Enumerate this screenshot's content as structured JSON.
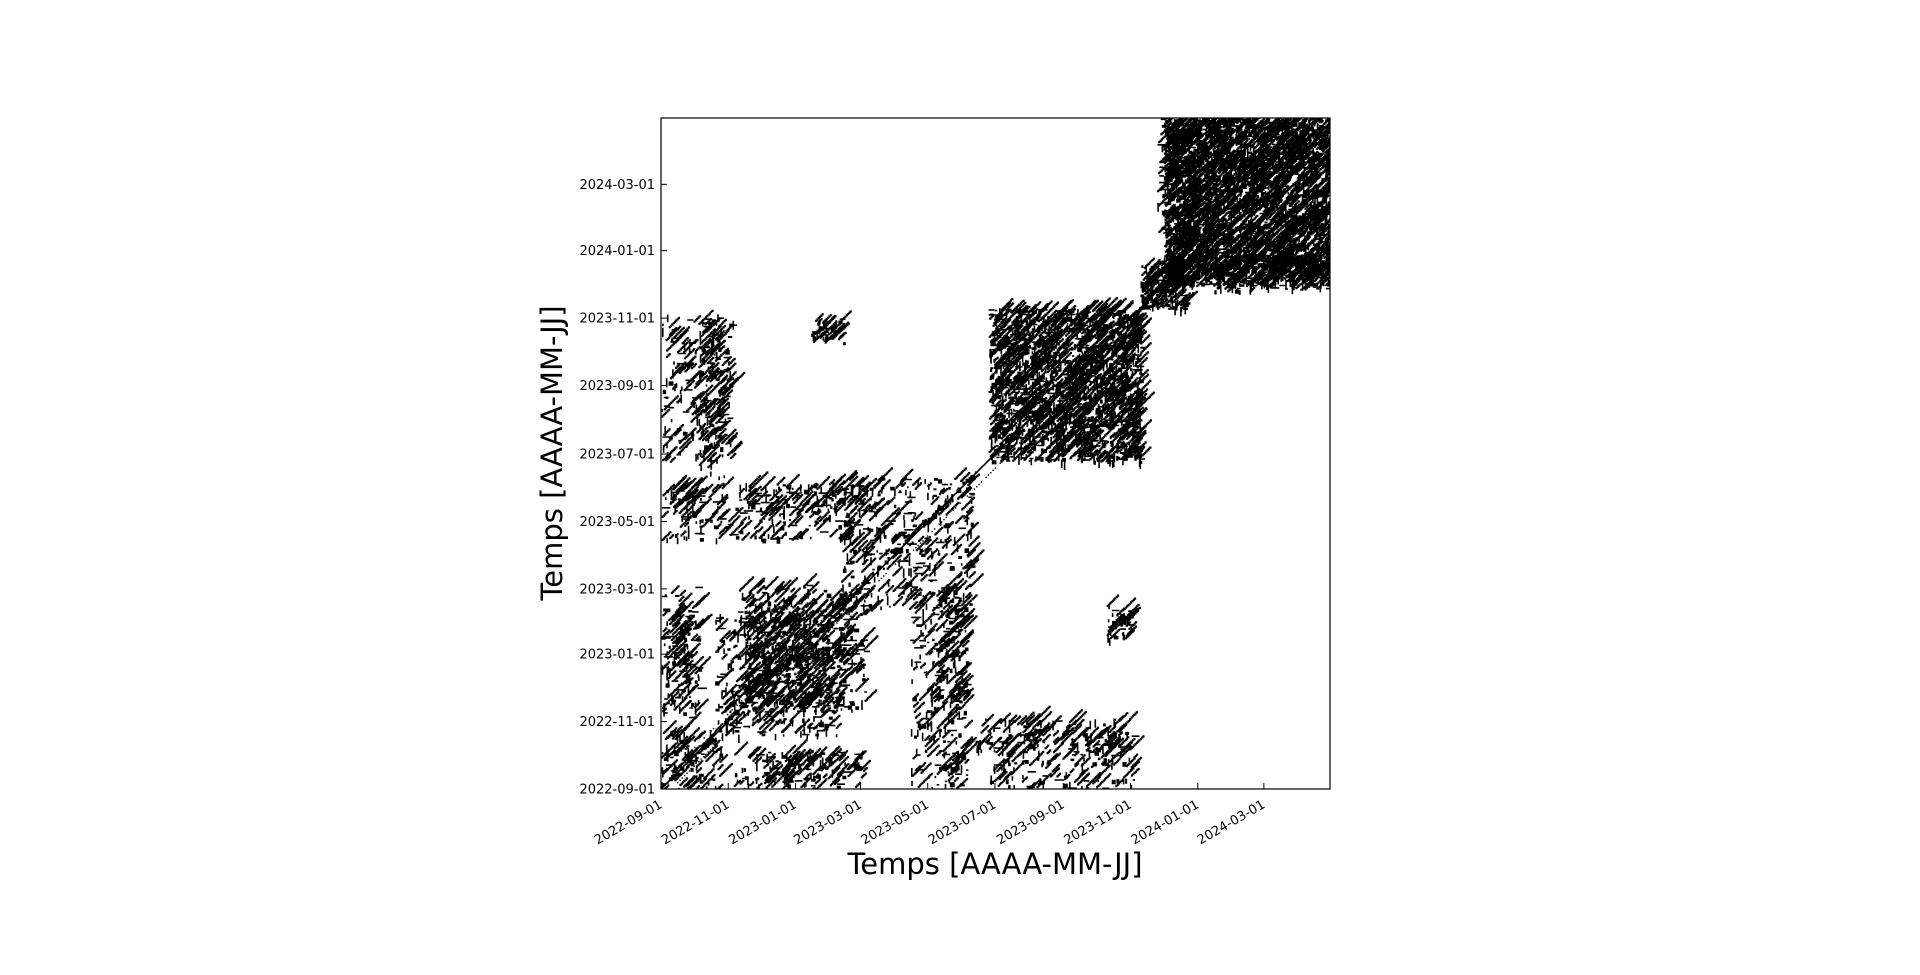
{
  "chart_data": {
    "type": "heatmap",
    "subtype": "recurrence-plot",
    "title": "",
    "xlabel": "Temps [AAAA-MM-JJ]",
    "ylabel": "Temps [AAAA-MM-JJ]",
    "axis_scale": "date",
    "xlim": [
      "2022-09-01",
      "2024-04-30"
    ],
    "ylim": [
      "2022-09-01",
      "2024-04-30"
    ],
    "x_ticks": [
      "2022-09-01",
      "2022-11-01",
      "2023-01-01",
      "2023-03-01",
      "2023-05-01",
      "2023-07-01",
      "2023-09-01",
      "2023-11-01",
      "2024-01-01",
      "2024-03-01"
    ],
    "y_ticks": [
      "2022-09-01",
      "2022-11-01",
      "2023-01-01",
      "2023-03-01",
      "2023-05-01",
      "2023-07-01",
      "2023-09-01",
      "2023-11-01",
      "2024-01-01",
      "2024-03-01"
    ],
    "grid": false,
    "legend": "none",
    "colors": {
      "recurrent": "#000000",
      "non_recurrent": "#ffffff",
      "frame": "#000000"
    },
    "symmetric": true,
    "main_diagonal": true,
    "recurrence_blocks": [
      {
        "x_from": "2022-09-01",
        "x_to": "2022-10-25",
        "y_from": "2022-09-01",
        "y_to": "2022-10-25",
        "density": 0.15
      },
      {
        "x_from": "2022-10-20",
        "x_to": "2023-02-10",
        "y_from": "2022-10-20",
        "y_to": "2023-02-10",
        "density": 0.12
      },
      {
        "x_from": "2022-09-01",
        "x_to": "2022-10-05",
        "y_from": "2022-11-05",
        "y_to": "2023-02-10",
        "density": 0.18
      },
      {
        "x_from": "2022-09-01",
        "x_to": "2022-10-05",
        "y_from": "2023-05-15",
        "y_to": "2023-06-05",
        "density": 0.2
      },
      {
        "x_from": "2022-10-05",
        "x_to": "2022-11-05",
        "y_from": "2023-06-10",
        "y_to": "2023-11-01",
        "density": 0.22
      },
      {
        "x_from": "2023-01-15",
        "x_to": "2023-02-15",
        "y_from": "2023-10-10",
        "y_to": "2023-11-01",
        "density": 0.3
      },
      {
        "x_from": "2022-11-15",
        "x_to": "2023-03-05",
        "y_from": "2022-09-01",
        "y_to": "2022-10-05",
        "density": 0.2
      },
      {
        "x_from": "2022-11-15",
        "x_to": "2023-03-05",
        "y_from": "2022-11-10",
        "y_to": "2023-02-20",
        "density": 0.2
      },
      {
        "x_from": "2022-11-15",
        "x_to": "2023-03-05",
        "y_from": "2023-05-10",
        "y_to": "2023-06-05",
        "density": 0.22
      },
      {
        "x_from": "2023-02-10",
        "x_to": "2023-06-10",
        "y_from": "2023-02-10",
        "y_to": "2023-06-10",
        "density": 0.1
      },
      {
        "x_from": "2023-04-15",
        "x_to": "2023-06-05",
        "y_from": "2022-09-01",
        "y_to": "2023-02-20",
        "density": 0.22
      },
      {
        "x_from": "2023-06-25",
        "x_to": "2023-11-10",
        "y_from": "2023-06-25",
        "y_to": "2023-11-10",
        "density": 0.4
      },
      {
        "x_from": "2023-06-25",
        "x_to": "2023-11-05",
        "y_from": "2022-09-01",
        "y_to": "2022-10-25",
        "density": 0.2
      },
      {
        "x_from": "2023-10-10",
        "x_to": "2023-10-30",
        "y_from": "2023-01-15",
        "y_to": "2023-02-05",
        "density": 0.45
      },
      {
        "x_from": "2023-11-10",
        "x_to": "2023-12-20",
        "y_from": "2023-11-10",
        "y_to": "2023-12-20",
        "density": 0.55
      },
      {
        "x_from": "2023-12-01",
        "x_to": "2024-04-30",
        "y_from": "2023-12-01",
        "y_to": "2024-04-30",
        "density": 0.55
      },
      {
        "x_from": "2023-11-25",
        "x_to": "2023-12-20",
        "y_from": "2024-01-15",
        "y_to": "2024-04-30",
        "density": 0.3
      }
    ]
  }
}
